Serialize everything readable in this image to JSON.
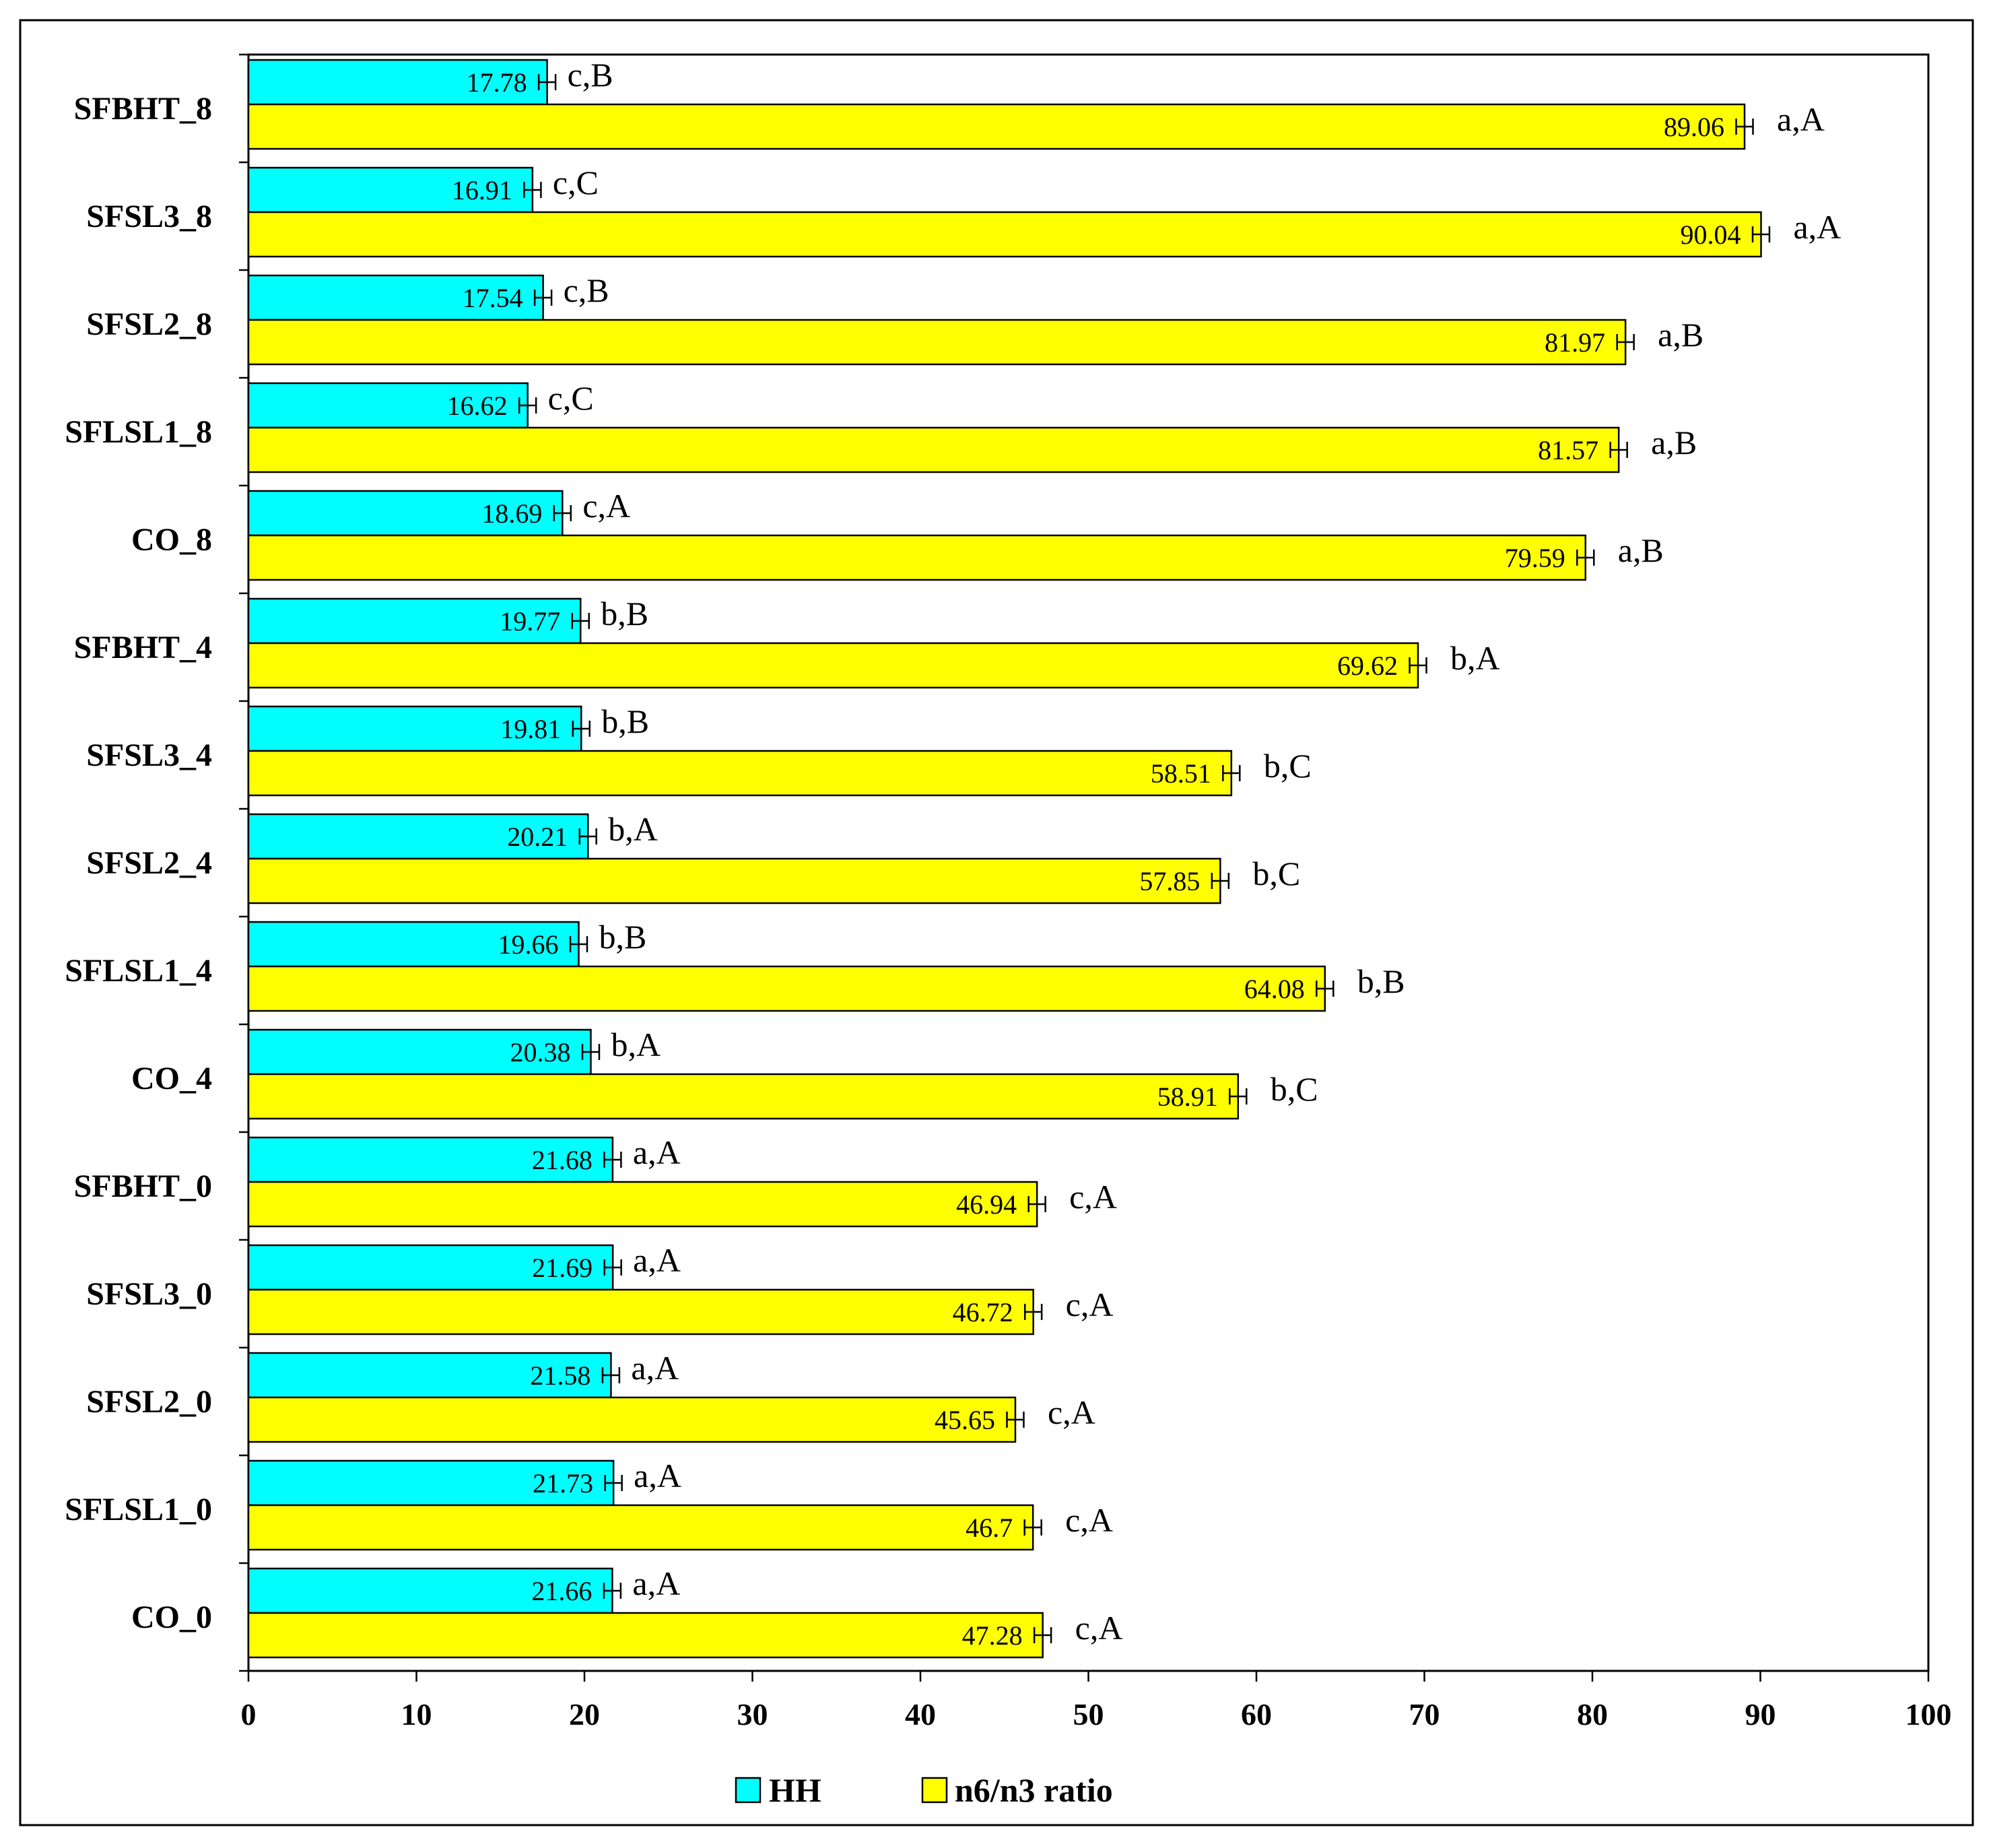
{
  "chart_data": {
    "type": "bar",
    "orientation": "horizontal",
    "title": "",
    "xlabel": "",
    "ylabel": "",
    "xlim": [
      0,
      100
    ],
    "xticks": [
      "0",
      "10",
      "20",
      "30",
      "40",
      "50",
      "60",
      "70",
      "80",
      "90",
      "100"
    ],
    "grid": false,
    "legend_position": "bottom-center",
    "categories": [
      "SFBHT_8",
      "SFSL3_8",
      "SFSL2_8",
      "SFLSL1_8",
      "CO_8",
      "SFBHT_4",
      "SFSL3_4",
      "SFSL2_4",
      "SFLSL1_4",
      "CO_4",
      "SFBHT_0",
      "SFSL3_0",
      "SFSL2_0",
      "SFLSL1_0",
      "CO_0"
    ],
    "series": [
      {
        "name": "HH",
        "color": "#00FFFF",
        "values": [
          17.78,
          16.91,
          17.54,
          16.62,
          18.69,
          19.77,
          19.81,
          20.21,
          19.66,
          20.38,
          21.68,
          21.69,
          21.58,
          21.73,
          21.66
        ],
        "value_labels": [
          "17.78",
          "16.91",
          "17.54",
          "16.62",
          "18.69",
          "19.77",
          "19.81",
          "20.21",
          "19.66",
          "20.38",
          "21.68",
          "21.69",
          "21.58",
          "21.73",
          "21.66"
        ],
        "significance": [
          "c,B",
          "c,C",
          "c,B",
          "c,C",
          "c,A",
          "b,B",
          "b,B",
          "b,A",
          "b,B",
          "b,A",
          "a,A",
          "a,A",
          "a,A",
          "a,A",
          "a,A"
        ]
      },
      {
        "name": "n6/n3 ratio",
        "color": "#FFFF00",
        "values": [
          89.06,
          90.04,
          81.97,
          81.57,
          79.59,
          69.62,
          58.51,
          57.85,
          64.08,
          58.91,
          46.94,
          46.72,
          45.65,
          46.7,
          47.28
        ],
        "value_labels": [
          "89.06",
          "90.04",
          "81.97",
          "81.57",
          "79.59",
          "69.62",
          "58.51",
          "57.85",
          "64.08",
          "58.91",
          "46.94",
          "46.72",
          "45.65",
          "46.7",
          "47.28"
        ],
        "significance": [
          "a,A",
          "a,A",
          "a,B",
          "a,B",
          "a,B",
          "b,A",
          "b,C",
          "b,C",
          "b,B",
          "b,C",
          "c,A",
          "c,A",
          "c,A",
          "c,A",
          "c,A"
        ]
      }
    ]
  }
}
